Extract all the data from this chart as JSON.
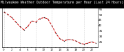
{
  "title": "Milwaukee Weather Outdoor Temperature per Hour (Last 24 Hours)",
  "hours": [
    0,
    1,
    2,
    3,
    4,
    5,
    6,
    7,
    8,
    9,
    10,
    11,
    12,
    13,
    14,
    15,
    16,
    17,
    18,
    19,
    20,
    21,
    22,
    23
  ],
  "temps": [
    52,
    50,
    47,
    43,
    39,
    36,
    39,
    44,
    43,
    46,
    47,
    46,
    40,
    33,
    28,
    26,
    27,
    27,
    26,
    24,
    23,
    24,
    25,
    24
  ],
  "line_color": "#cc0000",
  "marker_color": "#000000",
  "bg_color": "#ffffff",
  "title_bg": "#000000",
  "title_fg": "#ffffff",
  "grid_color": "#888888",
  "ylim": [
    20,
    56
  ],
  "ytick_values": [
    25,
    30,
    35,
    40,
    45,
    50,
    55
  ],
  "ytick_labels": [
    "25",
    "30",
    "35",
    "40",
    "45",
    "50",
    "55"
  ],
  "xtick_step": 1,
  "ylabel_fontsize": 3.0,
  "xlabel_fontsize": 2.8,
  "title_fontsize": 3.5,
  "line_width": 0.7,
  "marker_size": 1.5,
  "vgrid_positions": [
    0,
    4,
    8,
    12,
    16,
    20
  ]
}
